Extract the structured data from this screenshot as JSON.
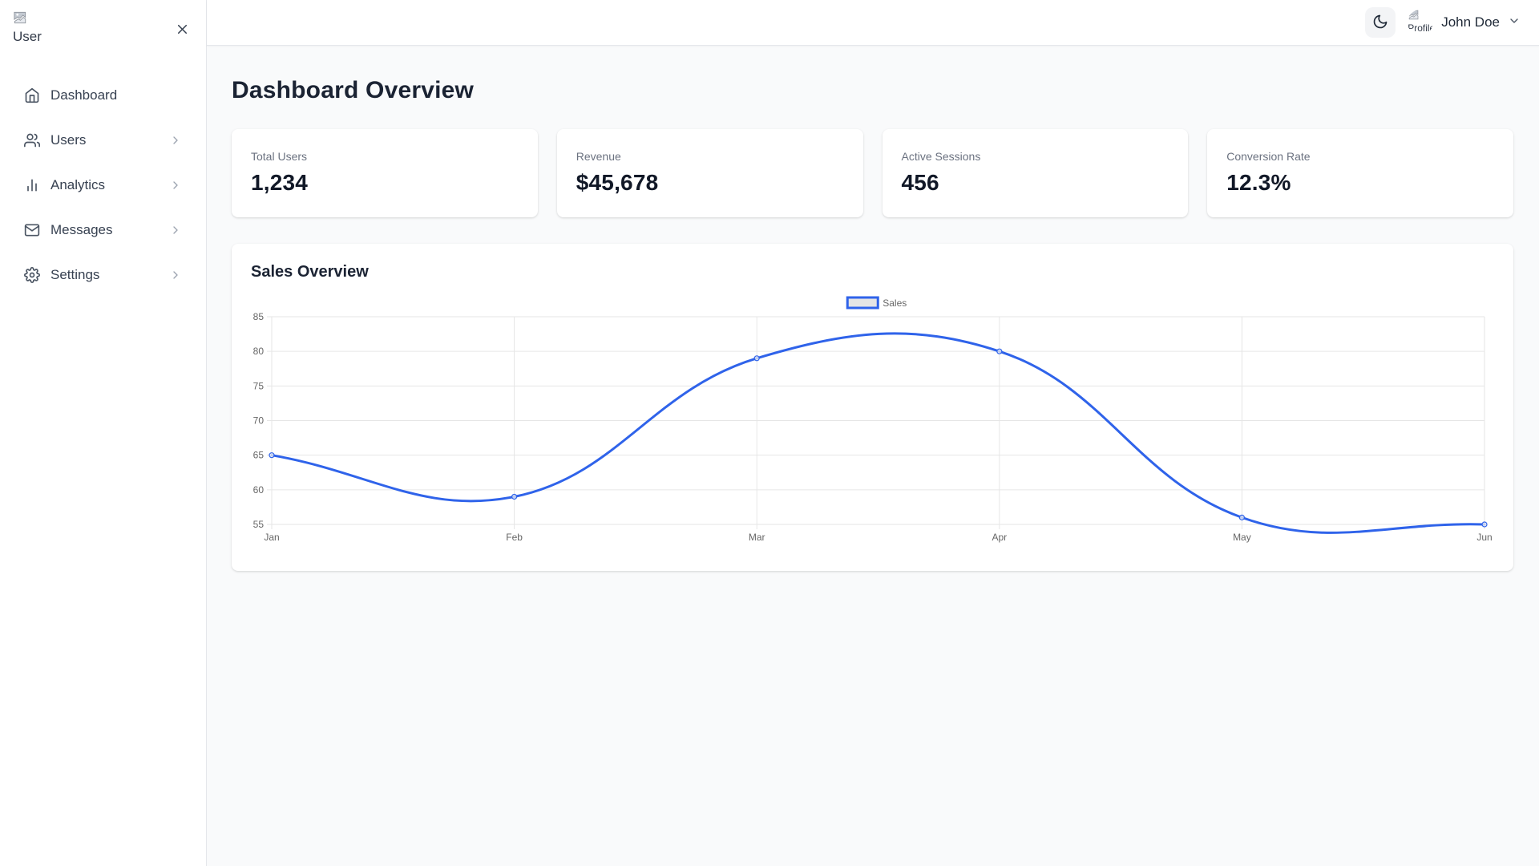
{
  "sidebar": {
    "logo_alt": "User",
    "items": [
      {
        "label": "Dashboard",
        "icon": "home-icon",
        "has_submenu": false
      },
      {
        "label": "Users",
        "icon": "users-icon",
        "has_submenu": true
      },
      {
        "label": "Analytics",
        "icon": "bar-chart-icon",
        "has_submenu": true
      },
      {
        "label": "Messages",
        "icon": "mail-icon",
        "has_submenu": true
      },
      {
        "label": "Settings",
        "icon": "gear-icon",
        "has_submenu": true
      }
    ]
  },
  "header": {
    "user_name": "John Doe",
    "avatar_alt": "Profile"
  },
  "page": {
    "title": "Dashboard Overview"
  },
  "stats": [
    {
      "label": "Total Users",
      "value": "1,234"
    },
    {
      "label": "Revenue",
      "value": "$45,678"
    },
    {
      "label": "Active Sessions",
      "value": "456"
    },
    {
      "label": "Conversion Rate",
      "value": "12.3%"
    }
  ],
  "chart_card": {
    "title": "Sales Overview"
  },
  "chart_data": {
    "type": "line",
    "title": "Sales Overview",
    "categories": [
      "Jan",
      "Feb",
      "Mar",
      "Apr",
      "May",
      "Jun"
    ],
    "series": [
      {
        "name": "Sales",
        "values": [
          65,
          59,
          79,
          80,
          56,
          55
        ]
      }
    ],
    "xlabel": "",
    "ylabel": "",
    "ylim": [
      55,
      85
    ],
    "ytick_step": 5,
    "yticks": [
      55,
      60,
      65,
      70,
      75,
      80,
      85
    ],
    "grid": true,
    "legend_position": "top",
    "line_tension": 0.4,
    "colors": {
      "line": "#2f63ea",
      "fill_swatch": "rgba(0,0,0,0.1)",
      "grid": "#e6e6e6",
      "tick_text": "#666666"
    }
  },
  "colors": {
    "accent_blue": "#2f63ea",
    "page_bg": "#f9fafb",
    "card_bg": "#ffffff",
    "border": "#e5e7eb"
  }
}
